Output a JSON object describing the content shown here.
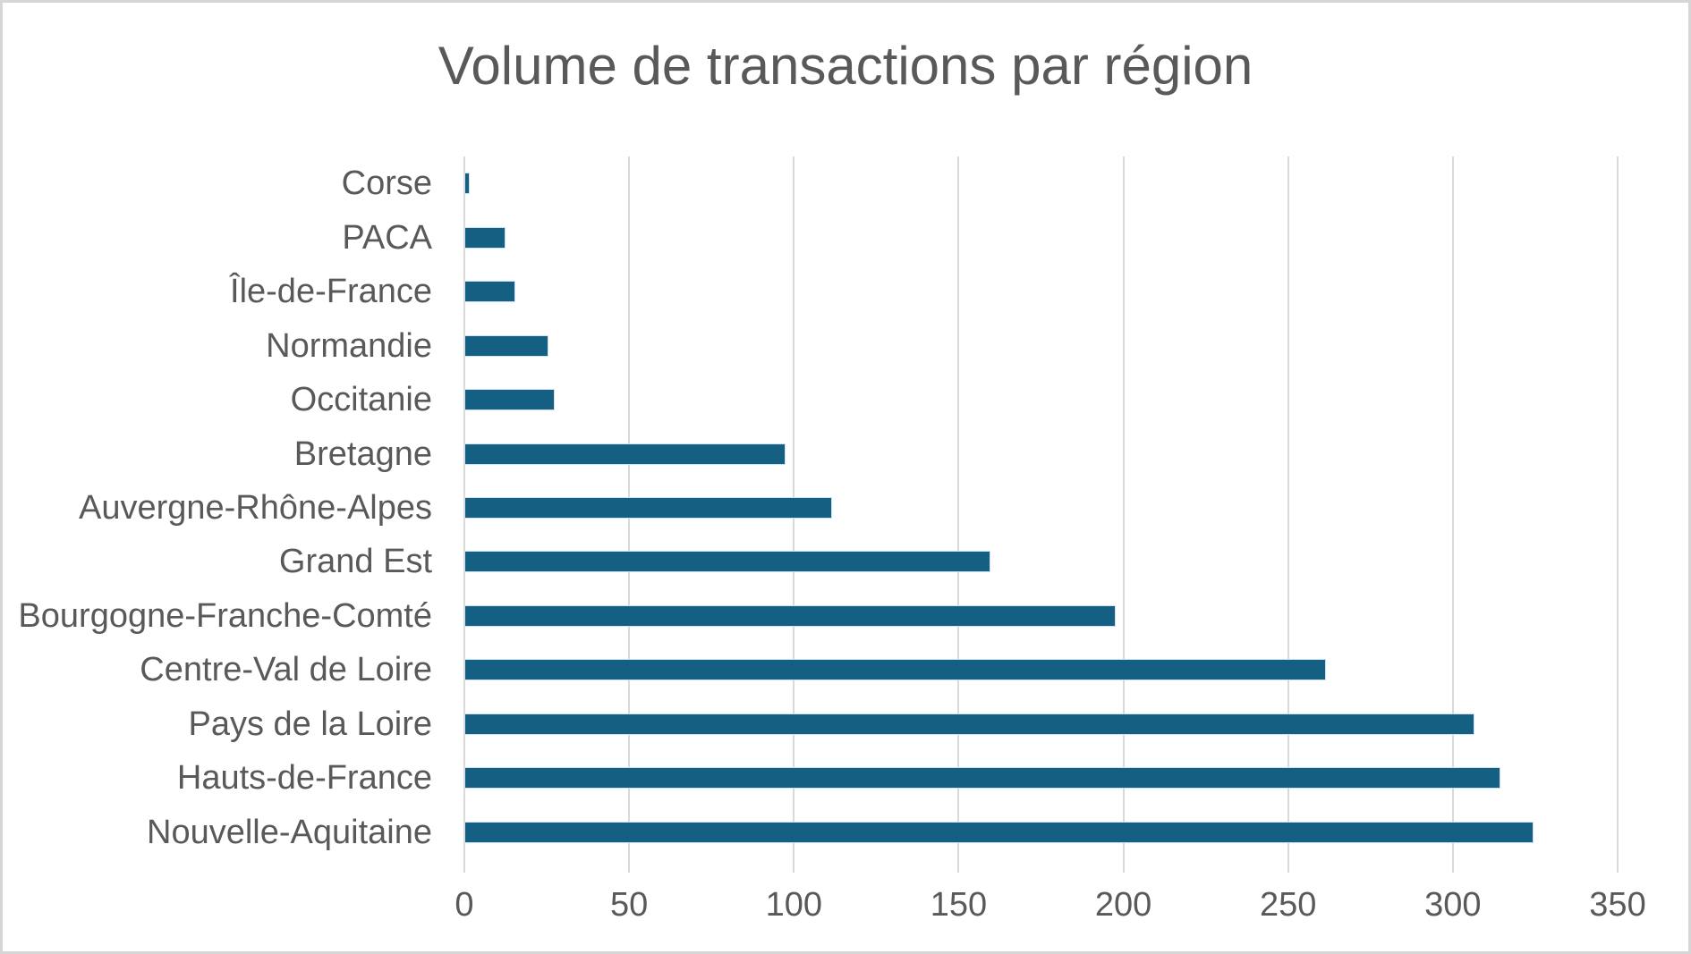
{
  "chart_data": {
    "type": "bar",
    "orientation": "horizontal",
    "title": "Volume de transactions par région",
    "categories": [
      "Corse",
      "PACA",
      "Île-de-France",
      "Normandie",
      "Occitanie",
      "Bretagne",
      "Auvergne-Rhône-Alpes",
      "Grand Est",
      "Bourgogne-Franche-Comté",
      "Centre-Val de Loire",
      "Pays de la Loire",
      "Hauts-de-France",
      "Nouvelle-Aquitaine"
    ],
    "values": [
      1,
      12,
      15,
      25,
      27,
      97,
      111,
      159,
      197,
      261,
      306,
      314,
      324
    ],
    "xlabel": "",
    "ylabel": "",
    "xlim": [
      0,
      350
    ],
    "xticks": [
      0,
      50,
      100,
      150,
      200,
      250,
      300,
      350
    ],
    "grid": true,
    "legend": false,
    "colors": {
      "bar_fill": "#156082",
      "bar_edge": "#cfe2ef",
      "gridline": "#d9d9d9",
      "text": "#595959",
      "frame_border": "#d6d6d6",
      "background": "#ffffff"
    }
  }
}
